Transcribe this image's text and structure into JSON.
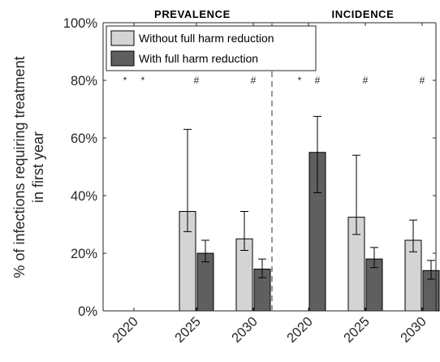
{
  "chart_data": {
    "type": "bar",
    "ylabel_lines": [
      "% of infections requiring treatment",
      "in first year"
    ],
    "ylim": [
      0,
      100
    ],
    "yticks": [
      "0%",
      "20%",
      "40%",
      "60%",
      "80%",
      "100%"
    ],
    "ytick_values": [
      0,
      20,
      40,
      60,
      80,
      100
    ],
    "sections": [
      {
        "label": "PREVALENCE",
        "group_indices": [
          0,
          1,
          2
        ]
      },
      {
        "label": "INCIDENCE",
        "group_indices": [
          3,
          4,
          5
        ]
      }
    ],
    "categories": [
      "2020",
      "2025",
      "2030",
      "2020",
      "2025",
      "2030"
    ],
    "series": [
      {
        "name": "Without full harm reduction",
        "color": "#d4d4d4",
        "values": [
          0,
          34.5,
          25,
          0,
          32.5,
          24.5
        ],
        "err_low": [
          null,
          27.5,
          21,
          null,
          26.5,
          20.5
        ],
        "err_high": [
          null,
          63,
          34.5,
          null,
          54,
          31.5
        ],
        "markers": [
          "*",
          "",
          "",
          "*",
          "",
          ""
        ]
      },
      {
        "name": "With full harm reduction",
        "color": "#5f5f5f",
        "values": [
          0,
          20,
          14.5,
          55,
          18,
          14
        ],
        "err_low": [
          null,
          17,
          11.5,
          41,
          15,
          11
        ],
        "err_high": [
          null,
          24.5,
          18,
          67.5,
          22,
          17.5
        ],
        "markers": [
          "*",
          "",
          "",
          "#",
          "",
          ""
        ]
      }
    ],
    "group_markers": [
      "",
      "#",
      "#",
      "",
      "#",
      "#"
    ],
    "legend_position": "top-left",
    "grid": false
  }
}
